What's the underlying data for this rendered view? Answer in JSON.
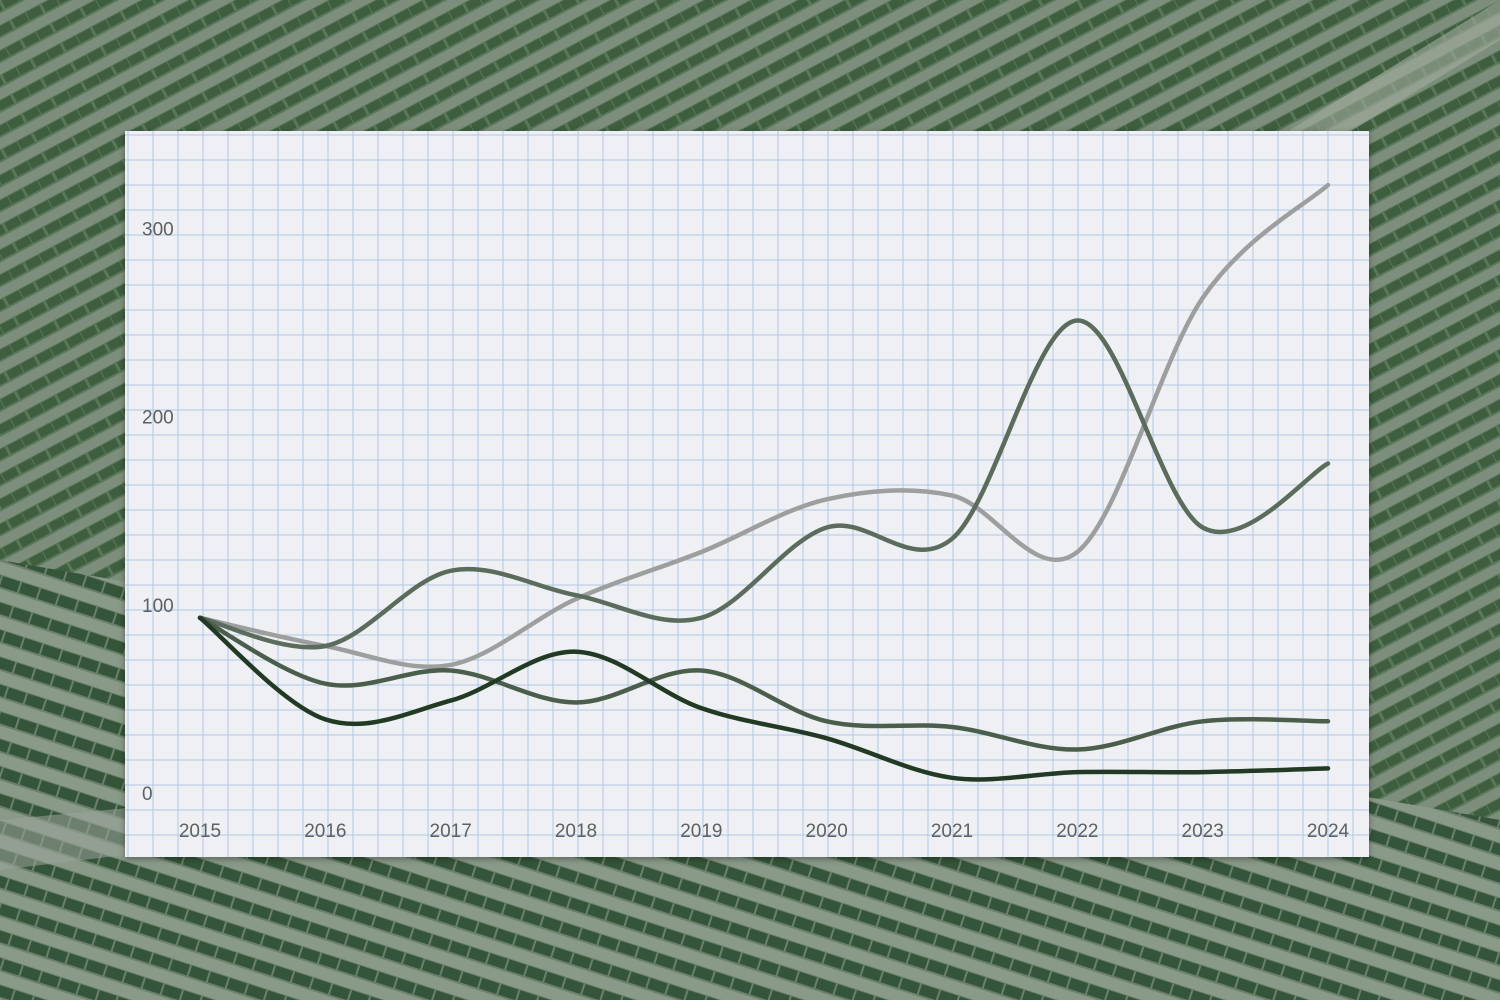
{
  "colors": {
    "background_field": "#4f6a4f",
    "paper": "#eef0f3",
    "grid_line": "#a9c3e6",
    "tick_text": "#5d6161"
  },
  "chart_data": {
    "type": "line",
    "title": "",
    "xlabel": "",
    "ylabel": "",
    "x": [
      "2015",
      "2016",
      "2017",
      "2018",
      "2019",
      "2020",
      "2021",
      "2022",
      "2023",
      "2024"
    ],
    "ylim": [
      0,
      330
    ],
    "yticks": [
      0,
      100,
      200,
      300
    ],
    "grid": true,
    "legend": "none",
    "series": [
      {
        "color": "#9c9f9e",
        "values": [
          100,
          85,
          75,
          110,
          135,
          163,
          165,
          135,
          270,
          330
        ]
      },
      {
        "color": "#5b6b5c",
        "values": [
          100,
          85,
          125,
          112,
          100,
          148,
          142,
          258,
          148,
          182
        ]
      },
      {
        "color": "#4b5e4c",
        "values": [
          100,
          65,
          72,
          55,
          72,
          45,
          42,
          30,
          45,
          45
        ]
      },
      {
        "color": "#223a24",
        "values": [
          100,
          46,
          56,
          82,
          52,
          36,
          15,
          18,
          18,
          20
        ]
      }
    ]
  }
}
